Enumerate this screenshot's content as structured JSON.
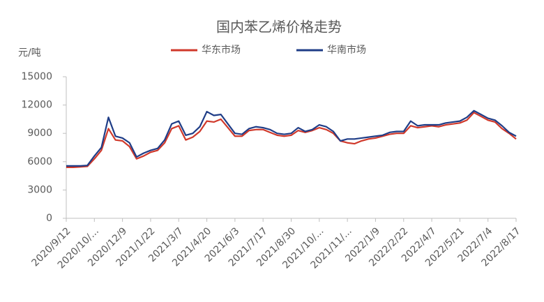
{
  "chart_data": {
    "type": "line",
    "title": "国内苯乙烯价格走势",
    "y_label": "元/吨",
    "categories": [
      "2020/9/12",
      null,
      null,
      null,
      "2020/10/...",
      null,
      null,
      null,
      "2020/12/9",
      null,
      null,
      null,
      "2021/1/22",
      null,
      null,
      null,
      "2021/3/7",
      null,
      null,
      null,
      "2021/4/20",
      null,
      null,
      null,
      "2021/6/3",
      null,
      null,
      null,
      "2021/7/17",
      null,
      null,
      null,
      "2021/8/30",
      null,
      null,
      null,
      "2021/10/...",
      null,
      null,
      null,
      "2021/11/...",
      null,
      null,
      null,
      "2022/1/9",
      null,
      null,
      null,
      "2022/2/22",
      null,
      null,
      null,
      "2022/4/7",
      null,
      null,
      null,
      "2022/5/21",
      null,
      null,
      null,
      "2022/7/4",
      null,
      null,
      null,
      "2022/8/17"
    ],
    "series": [
      {
        "name": "华东市场",
        "color": "#d0392b",
        "values": [
          5400,
          5400,
          5450,
          5500,
          6300,
          7200,
          9500,
          8300,
          8200,
          7600,
          6300,
          6600,
          7000,
          7200,
          8000,
          9500,
          9800,
          8300,
          8600,
          9200,
          10300,
          10200,
          10500,
          9600,
          8700,
          8700,
          9300,
          9400,
          9400,
          9100,
          8800,
          8700,
          8800,
          9300,
          9100,
          9300,
          9600,
          9400,
          9000,
          8200,
          8000,
          7900,
          8200,
          8400,
          8500,
          8700,
          8900,
          9000,
          9000,
          9800,
          9600,
          9700,
          9800,
          9700,
          9900,
          10000,
          10100,
          10400,
          11200,
          10800,
          10400,
          10200,
          9500,
          9000,
          8400
        ]
      },
      {
        "name": "华南市场",
        "color": "#1f3d87",
        "values": [
          5550,
          5550,
          5550,
          5600,
          6600,
          7500,
          10700,
          8700,
          8500,
          8000,
          6500,
          6900,
          7200,
          7400,
          8300,
          10000,
          10300,
          8800,
          9000,
          9700,
          11300,
          10900,
          11000,
          10000,
          9000,
          8900,
          9500,
          9700,
          9600,
          9400,
          9000,
          8900,
          9000,
          9600,
          9200,
          9400,
          9900,
          9700,
          9200,
          8200,
          8400,
          8400,
          8500,
          8600,
          8700,
          8800,
          9100,
          9200,
          9200,
          10300,
          9800,
          9900,
          9900,
          9900,
          10100,
          10200,
          10300,
          10700,
          11400,
          11000,
          10600,
          10400,
          9800,
          9100,
          8700
        ]
      }
    ],
    "ylim": [
      0,
      15000
    ],
    "yticks": [
      0,
      3000,
      6000,
      9000,
      12000,
      15000
    ],
    "grid": false
  }
}
